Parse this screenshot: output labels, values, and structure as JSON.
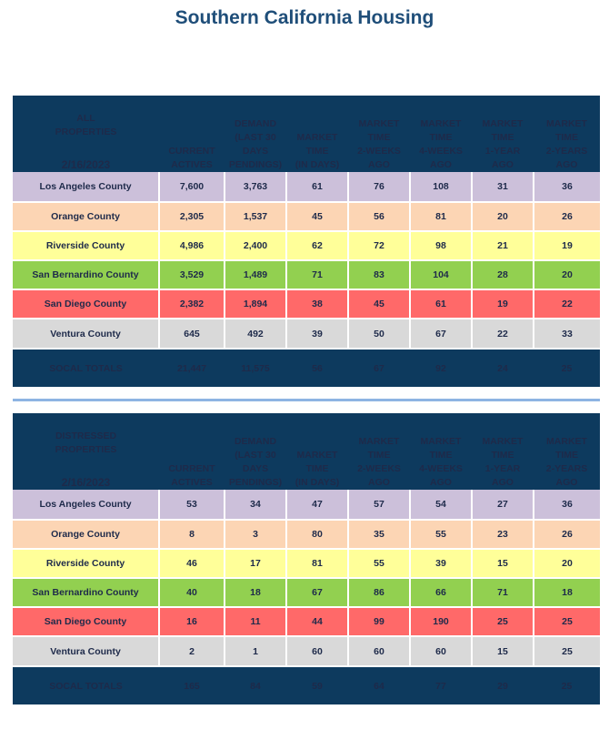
{
  "title": "Southern California Housing",
  "headers": [
    [
      "CURRENT",
      "ACTIVES"
    ],
    [
      "DEMAND",
      "(LAST 30",
      "DAYS",
      "PENDINGS)"
    ],
    [
      "MARKET",
      "TIME",
      "(IN DAYS)"
    ],
    [
      "MARKET",
      "TIME",
      "2-WEEKS",
      "AGO"
    ],
    [
      "MARKET",
      "TIME",
      "4-WEEKS",
      "AGO"
    ],
    [
      "MARKET",
      "TIME",
      "1-YEAR",
      "AGO"
    ],
    [
      "MARKET",
      "TIME",
      "2-YEARS",
      "AGO"
    ]
  ],
  "region_colors": {
    "Los Angeles County": "#ccc0da",
    "Orange County": "#fcd5b4",
    "Riverside County": "#ffff99",
    "San Bernardino County": "#92d050",
    "San Diego County": "#ff6969",
    "Ventura County": "#d9d9d9"
  },
  "tables": [
    {
      "label_lines": [
        "ALL",
        "PROPERTIES"
      ],
      "date": "2/16/2023",
      "rows": [
        {
          "region": "Los Angeles County",
          "values": [
            "7,600",
            "3,763",
            "61",
            "76",
            "108",
            "31",
            "36"
          ]
        },
        {
          "region": "Orange County",
          "values": [
            "2,305",
            "1,537",
            "45",
            "56",
            "81",
            "20",
            "26"
          ]
        },
        {
          "region": "Riverside County",
          "values": [
            "4,986",
            "2,400",
            "62",
            "72",
            "98",
            "21",
            "19"
          ]
        },
        {
          "region": "San Bernardino County",
          "values": [
            "3,529",
            "1,489",
            "71",
            "83",
            "104",
            "28",
            "20"
          ]
        },
        {
          "region": "San Diego County",
          "values": [
            "2,382",
            "1,894",
            "38",
            "45",
            "61",
            "19",
            "22"
          ]
        },
        {
          "region": "Ventura County",
          "values": [
            "645",
            "492",
            "39",
            "50",
            "67",
            "22",
            "33"
          ]
        }
      ],
      "totals": {
        "label": "SOCAL TOTALS",
        "values": [
          "21,447",
          "11,575",
          "56",
          "67",
          "92",
          "24",
          "25"
        ]
      }
    },
    {
      "label_lines": [
        "DISTRESSED",
        "PROPERTIES"
      ],
      "date": "2/16/2023",
      "rows": [
        {
          "region": "Los Angeles County",
          "values": [
            "53",
            "34",
            "47",
            "57",
            "54",
            "27",
            "36"
          ]
        },
        {
          "region": "Orange County",
          "values": [
            "8",
            "3",
            "80",
            "35",
            "55",
            "23",
            "26"
          ]
        },
        {
          "region": "Riverside County",
          "values": [
            "46",
            "17",
            "81",
            "55",
            "39",
            "15",
            "20"
          ]
        },
        {
          "region": "San Bernardino County",
          "values": [
            "40",
            "18",
            "67",
            "86",
            "66",
            "71",
            "18"
          ]
        },
        {
          "region": "San Diego County",
          "values": [
            "16",
            "11",
            "44",
            "99",
            "190",
            "25",
            "25"
          ]
        },
        {
          "region": "Ventura County",
          "values": [
            "2",
            "1",
            "60",
            "60",
            "60",
            "15",
            "25"
          ]
        }
      ],
      "totals": {
        "label": "SOCAL TOTALS",
        "values": [
          "165",
          "84",
          "59",
          "64",
          "77",
          "29",
          "25"
        ]
      }
    }
  ]
}
